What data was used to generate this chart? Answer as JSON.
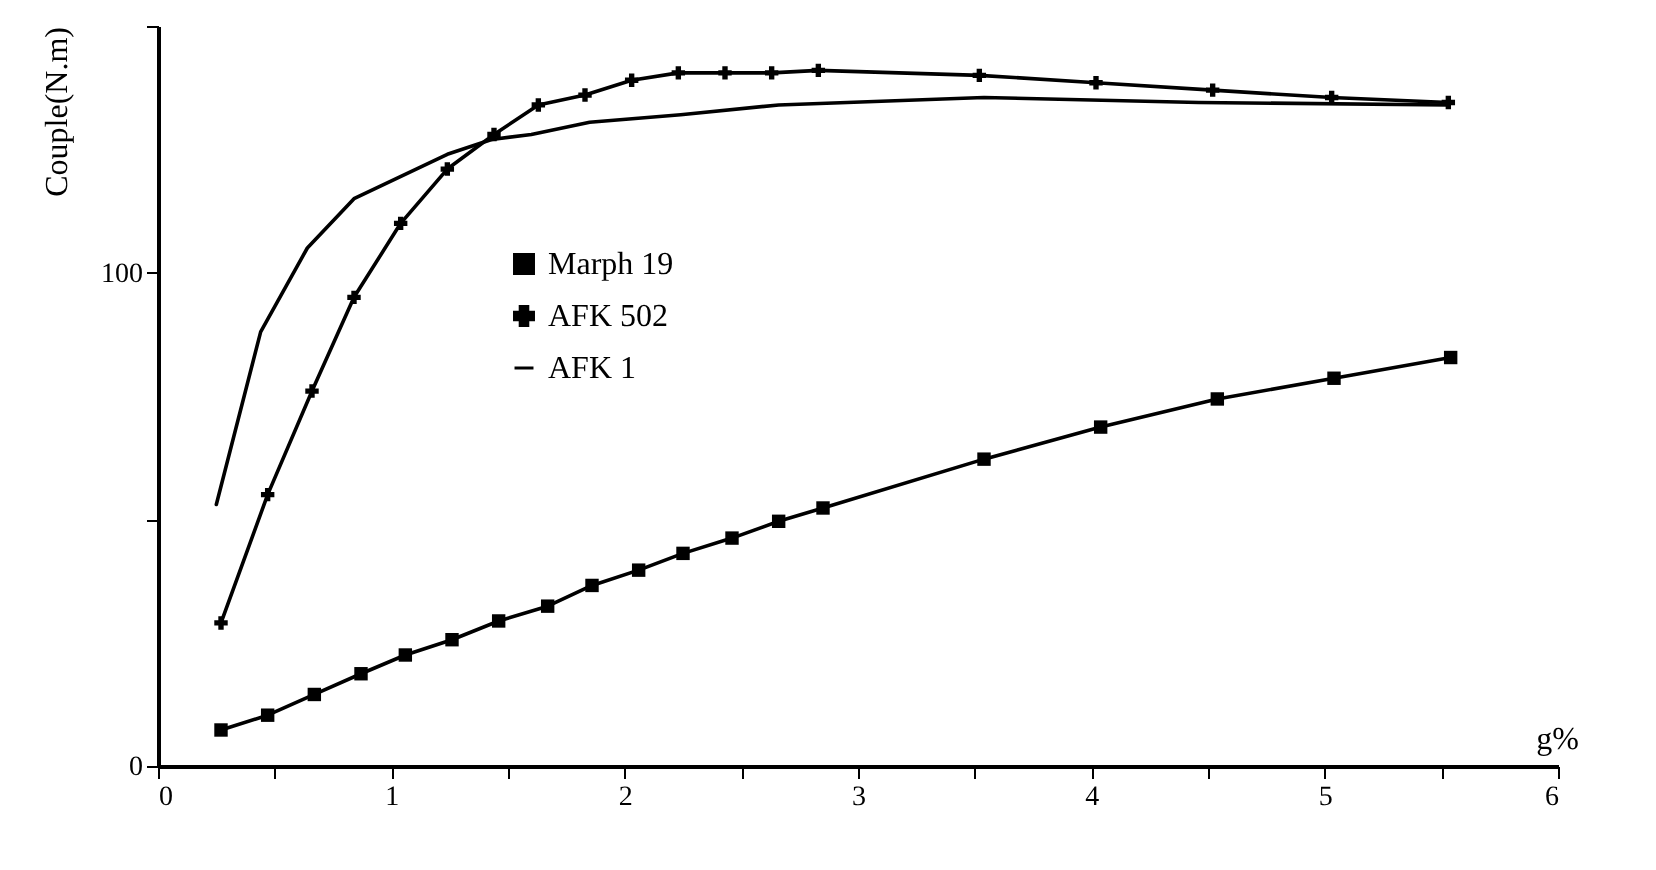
{
  "chart_data": {
    "type": "line",
    "xlabel": "g%",
    "ylabel": "Couple(N.m)",
    "xlim": [
      0,
      6
    ],
    "ylim": [
      0,
      150
    ],
    "xticks": [
      0,
      {
        "value": 0.5,
        "label": null
      },
      1,
      {
        "value": 1.5,
        "label": null
      },
      2,
      {
        "value": 2.5,
        "label": null
      },
      3,
      {
        "value": 3.5,
        "label": null
      },
      4,
      {
        "value": 4.5,
        "label": null
      },
      5,
      {
        "value": 5.5,
        "label": null
      },
      6
    ],
    "yticks": [
      0,
      {
        "value": 50,
        "label": null
      },
      100,
      {
        "value": 150,
        "label": null
      }
    ],
    "grid": false,
    "legend": "left",
    "line_style": "solid",
    "series": [
      {
        "name": "Marph 19",
        "color": "#000000",
        "marker": "square",
        "x": [
          0.27,
          0.47,
          0.67,
          0.87,
          1.06,
          1.26,
          1.46,
          1.67,
          1.86,
          2.06,
          2.25,
          2.46,
          2.66,
          2.85,
          3.54,
          4.04,
          4.54,
          5.04,
          5.54
        ],
        "values": [
          7.3,
          10.3,
          14.5,
          18.7,
          22.5,
          25.6,
          29.4,
          32.4,
          36.6,
          39.7,
          43.1,
          46.2,
          49.6,
          52.3,
          62.2,
          68.7,
          74.4,
          78.6,
          82.8
        ]
      },
      {
        "name": "AFK 502",
        "color": "#000000",
        "marker": "cross",
        "x": [
          0.27,
          0.47,
          0.66,
          0.84,
          1.04,
          1.24,
          1.44,
          1.63,
          1.83,
          2.03,
          2.23,
          2.43,
          2.63,
          2.83,
          3.52,
          4.02,
          4.52,
          5.03,
          5.53
        ],
        "values": [
          29,
          55,
          76,
          95,
          110,
          121,
          128,
          134,
          136,
          139,
          140.5,
          140.5,
          140.5,
          141,
          140,
          138.5,
          137,
          135.5,
          134.5
        ]
      },
      {
        "name": "AFK 1",
        "color": "#000000",
        "marker": "none",
        "x": [
          0.25,
          0.44,
          0.64,
          0.84,
          1.24,
          1.43,
          1.6,
          1.85,
          2.24,
          2.66,
          3.54,
          4.46,
          5.53
        ],
        "values": [
          53,
          88,
          105,
          115,
          124,
          127,
          128,
          130.5,
          132,
          134,
          135.5,
          134.5,
          134
        ]
      }
    ]
  }
}
